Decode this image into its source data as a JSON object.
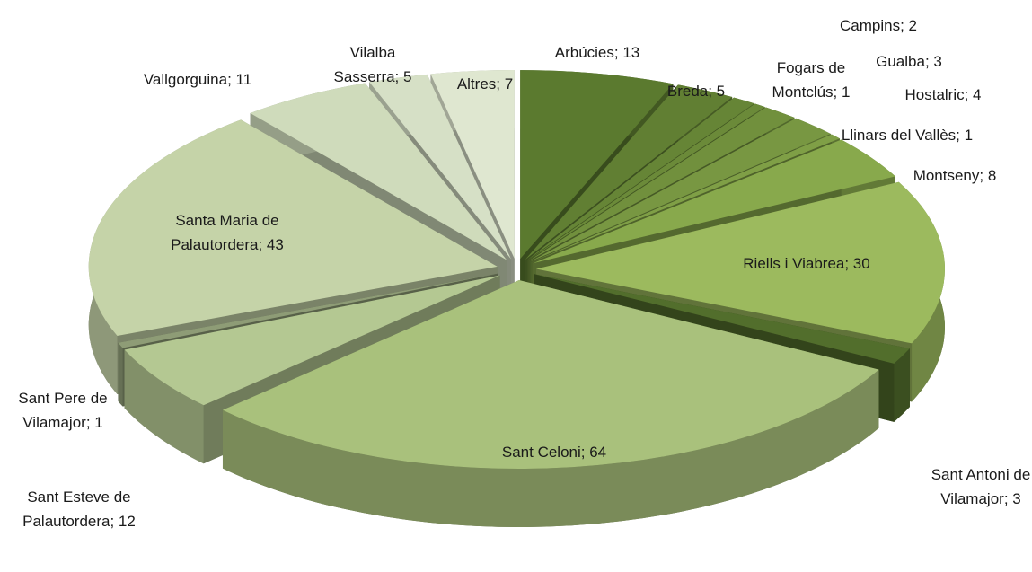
{
  "chart_data": {
    "type": "pie3d",
    "categories": [
      "Arbúcies",
      "Breda",
      "Campins",
      "Fogars de Montclús",
      "Gualba",
      "Hostalric",
      "Llinars del Vallès",
      "Montseny",
      "Riells i Viabrea",
      "Sant Antoni de Vilamajor",
      "Sant Celoni",
      "Sant Esteve de Palautordera",
      "Sant Pere de Vilamajor",
      "Santa Maria de Palautordera",
      "Vallgorguina",
      "Vilalba Sasserra",
      "Altres"
    ],
    "values": [
      13,
      5,
      2,
      1,
      3,
      4,
      1,
      8,
      30,
      3,
      64,
      12,
      1,
      43,
      11,
      5,
      7
    ],
    "value_labels": [
      "Arbúcies; 13",
      "Breda; 5",
      "Campins; 2",
      "Fogars de Montclús; 1",
      "Gualba; 3",
      "Hostalric; 4",
      "Llinars del Vallès; 1",
      "Montseny; 8",
      "Riells i Viabrea; 30",
      "Sant Antoni de Vilamajor; 3",
      "Sant Celoni; 64",
      "Sant Esteve de Palautordera; 12",
      "Sant Pere de Vilamajor; 1",
      "Santa Maria de Palautordera; 43",
      "Vallgorguina; 11",
      "Vilalba Sasserra; 5",
      "Altres; 7"
    ],
    "colors": [
      "#5b7a2f",
      "#617f33",
      "#668536",
      "#6b8a39",
      "#71903d",
      "#789742",
      "#7f9f46",
      "#88a94c",
      "#9cba5e",
      "#526e2c",
      "#a9c17c",
      "#b4c892",
      "#8e9c76",
      "#c5d3a8",
      "#cfdbbb",
      "#d6e0c6",
      "#dfe7d0"
    ]
  }
}
